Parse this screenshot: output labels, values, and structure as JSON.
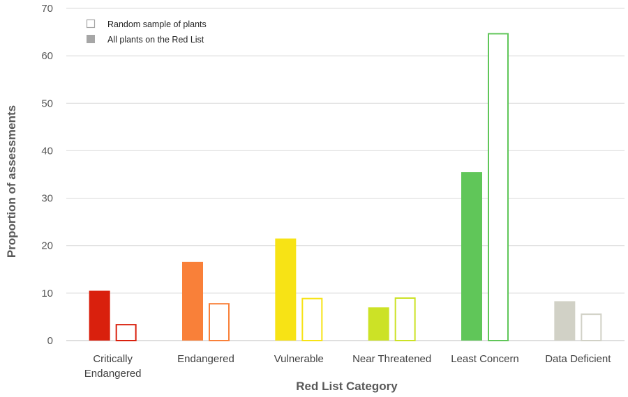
{
  "chart_data": {
    "type": "bar",
    "title": "",
    "xlabel": "Red List Category",
    "ylabel": "Proportion of assessments",
    "ylim": [
      0,
      70
    ],
    "yticks": [
      0,
      10,
      20,
      30,
      40,
      50,
      60,
      70
    ],
    "grid": true,
    "legend_position": "top-left",
    "categories": [
      {
        "label_lines": [
          "Critically",
          "Endangered"
        ],
        "color": "#d9200d"
      },
      {
        "label_lines": [
          "Endangered"
        ],
        "color": "#f98039"
      },
      {
        "label_lines": [
          "Vulnerable"
        ],
        "color": "#f7e315"
      },
      {
        "label_lines": [
          "Near Threatened"
        ],
        "color": "#cce226"
      },
      {
        "label_lines": [
          "Least Concern"
        ],
        "color": "#60c659"
      },
      {
        "label_lines": [
          "Data Deficient"
        ],
        "color": "#d1d1c6"
      }
    ],
    "series": [
      {
        "name": "All plants on the Red List",
        "style": "filled",
        "legend_swatch_color": "#a6a6a6",
        "values": [
          10.5,
          16.6,
          21.5,
          7.0,
          35.5,
          8.3
        ]
      },
      {
        "name": "Random sample of plants",
        "style": "outline",
        "legend_swatch_color": "#a6a6a6",
        "values": [
          3.5,
          7.9,
          9.0,
          9.1,
          64.8,
          5.7
        ]
      }
    ],
    "legend_order": [
      "Random sample of plants",
      "All plants on the Red List"
    ],
    "gridline_color": "#d9d9d9",
    "axis_color": "#bfbfbf"
  }
}
